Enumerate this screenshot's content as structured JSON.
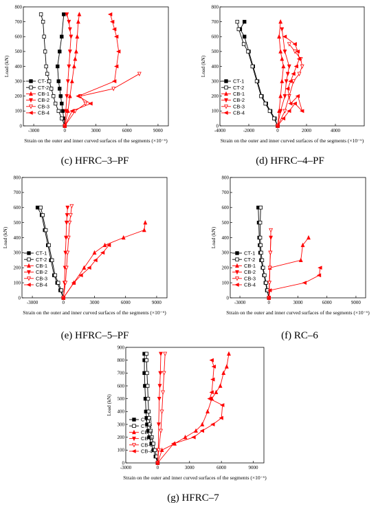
{
  "chart_data": [
    {
      "type": "line",
      "caption": "(c) HFRC–3–PF",
      "xlabel": "Strain on the outer and inner curved surfaces of the segments (×10⁻⁶)",
      "ylabel": "Load (kN)",
      "xlim": [
        -4000,
        10000
      ],
      "ylim": [
        0,
        800
      ],
      "xticks": [
        "-3000",
        "0",
        "3000",
        "6000",
        "9000"
      ],
      "yticks": [
        "0",
        "100",
        "200",
        "300",
        "400",
        "500",
        "600",
        "700",
        "800"
      ],
      "legend": "left",
      "series": [
        {
          "name": "CT-1",
          "color": "#000000",
          "marker": "square-filled",
          "x": [
            0,
            -100,
            -200,
            -300,
            -400,
            -500,
            -600,
            -700,
            -500,
            -300,
            -100
          ],
          "y": [
            0,
            50,
            100,
            150,
            200,
            250,
            300,
            400,
            500,
            600,
            750
          ]
        },
        {
          "name": "CT-2",
          "color": "#000000",
          "marker": "square-open",
          "x": [
            0,
            -300,
            -600,
            -900,
            -1100,
            -1300,
            -1500,
            -1700,
            -1800,
            -1900,
            -2000,
            -2100,
            -2300
          ],
          "y": [
            0,
            50,
            100,
            150,
            200,
            250,
            300,
            350,
            400,
            500,
            600,
            700,
            750
          ]
        },
        {
          "name": "CB-1",
          "color": "#ff0000",
          "marker": "triangle-up",
          "x": [
            0,
            300,
            500,
            700,
            900,
            1000,
            1100,
            1200,
            1300,
            1400
          ],
          "y": [
            0,
            100,
            200,
            300,
            400,
            450,
            500,
            600,
            700,
            750
          ]
        },
        {
          "name": "CB-2",
          "color": "#ff0000",
          "marker": "triangle-down",
          "x": [
            0,
            100,
            200,
            300,
            400,
            500,
            600,
            500,
            400,
            200
          ],
          "y": [
            0,
            100,
            200,
            300,
            400,
            500,
            600,
            650,
            700,
            750
          ]
        },
        {
          "name": "CB-3",
          "color": "#ff0000",
          "marker": "triangle-down-open",
          "x": [
            0,
            1000,
            2000,
            1500,
            4700,
            7200
          ],
          "y": [
            0,
            100,
            150,
            200,
            250,
            350
          ]
        },
        {
          "name": "CB-4",
          "color": "#ff0000",
          "marker": "triangle-left",
          "x": [
            0,
            700,
            2500,
            1300,
            4800,
            5000,
            5200,
            5000,
            4800,
            4600,
            4400
          ],
          "y": [
            0,
            100,
            150,
            200,
            300,
            400,
            500,
            600,
            650,
            700,
            750
          ]
        }
      ]
    },
    {
      "type": "line",
      "caption": "(d) HFRC–4–PF",
      "xlabel": "Strain on the outer and inner curved surfaces of the segments (×10⁻⁶)",
      "ylabel": "Load (kN)",
      "xlim": [
        -4000,
        6000
      ],
      "ylim": [
        0,
        800
      ],
      "xticks": [
        "-4000",
        "-2000",
        "0",
        "2000",
        "4000"
      ],
      "yticks": [
        "0",
        "100",
        "200",
        "300",
        "400",
        "500",
        "600",
        "700",
        "800"
      ],
      "legend": "left",
      "series": [
        {
          "name": "CT-1",
          "color": "#000000",
          "marker": "square-filled",
          "x": [
            0,
            -200,
            -500,
            -800,
            -1100,
            -1400,
            -1700,
            -2000,
            -2300,
            -2600,
            -2300
          ],
          "y": [
            0,
            50,
            100,
            150,
            200,
            300,
            400,
            500,
            600,
            650,
            700
          ]
        },
        {
          "name": "CT-2",
          "color": "#000000",
          "marker": "square-open",
          "x": [
            0,
            -250,
            -550,
            -850,
            -1150,
            -1450,
            -1750,
            -2050,
            -2350,
            -2700,
            -2800
          ],
          "y": [
            0,
            50,
            100,
            150,
            200,
            300,
            400,
            500,
            550,
            650,
            700
          ]
        },
        {
          "name": "CB-1",
          "color": "#ff0000",
          "marker": "triangle-up",
          "x": [
            0,
            100,
            200,
            300,
            400,
            300,
            200,
            100,
            200
          ],
          "y": [
            0,
            100,
            200,
            300,
            400,
            450,
            500,
            600,
            700
          ]
        },
        {
          "name": "CB-2",
          "color": "#ff0000",
          "marker": "triangle-down",
          "x": [
            0,
            200,
            500,
            600,
            700,
            800,
            500,
            300
          ],
          "y": [
            0,
            100,
            200,
            300,
            350,
            400,
            500,
            650
          ]
        },
        {
          "name": "CB-3",
          "color": "#ff0000",
          "marker": "triangle-down-open",
          "x": [
            0,
            500,
            800,
            1100,
            1500,
            1700,
            1600,
            1200,
            800
          ],
          "y": [
            0,
            100,
            200,
            300,
            350,
            400,
            450,
            500,
            550
          ]
        },
        {
          "name": "CB-4",
          "color": "#ff0000",
          "marker": "triangle-left",
          "x": [
            0,
            400,
            800,
            1200,
            1700,
            1400,
            900,
            700,
            900,
            1100,
            1300,
            1500,
            1400,
            1200,
            500
          ],
          "y": [
            0,
            50,
            100,
            150,
            100,
            200,
            150,
            250,
            300,
            350,
            400,
            450,
            500,
            550,
            600
          ]
        }
      ]
    },
    {
      "type": "line",
      "caption": "(e) HFRC–5–PF",
      "xlabel": "Strain on the outer and inner curved surfaces of the segments (×10⁻⁶)",
      "ylabel": "Load (kN)",
      "xlim": [
        -4000,
        10000
      ],
      "ylim": [
        0,
        800
      ],
      "xticks": [
        "-3000",
        "0",
        "3000",
        "6000",
        "9000"
      ],
      "yticks": [
        "0",
        "100",
        "200",
        "300",
        "400",
        "500",
        "600",
        "700",
        "800"
      ],
      "legend": "left",
      "series": [
        {
          "name": "CT-1",
          "color": "#000000",
          "marker": "square-filled",
          "x": [
            0,
            -300,
            -600,
            -900,
            -1200,
            -1500,
            -1800,
            -2100,
            -2500
          ],
          "y": [
            0,
            50,
            100,
            150,
            250,
            350,
            450,
            550,
            600
          ]
        },
        {
          "name": "CT-2",
          "color": "#000000",
          "marker": "square-open",
          "x": [
            0,
            -200,
            -500,
            -800,
            -1100,
            -1400,
            -1700,
            -2000,
            -2200
          ],
          "y": [
            0,
            50,
            100,
            150,
            250,
            350,
            450,
            550,
            600
          ]
        },
        {
          "name": "CB-1",
          "color": "#ff0000",
          "marker": "triangle-up",
          "x": [
            0,
            1000,
            2000,
            3000,
            4000,
            5800,
            7800,
            7900
          ],
          "y": [
            0,
            100,
            200,
            300,
            350,
            400,
            450,
            500
          ]
        },
        {
          "name": "CB-2",
          "color": "#ff0000",
          "marker": "triangle-down",
          "x": [
            0,
            100,
            150,
            200,
            250,
            300,
            350,
            400
          ],
          "y": [
            0,
            100,
            200,
            300,
            400,
            500,
            550,
            600
          ]
        },
        {
          "name": "CB-3",
          "color": "#ff0000",
          "marker": "triangle-down-open",
          "x": [
            0,
            200,
            300,
            400,
            500,
            600,
            700,
            800
          ],
          "y": [
            0,
            100,
            200,
            300,
            400,
            500,
            550,
            610
          ]
        },
        {
          "name": "CB-4",
          "color": "#ff0000",
          "marker": "triangle-left",
          "x": [
            0,
            1000,
            1700,
            2500,
            3100,
            3800,
            4400
          ],
          "y": [
            0,
            100,
            150,
            200,
            250,
            300,
            350
          ]
        }
      ]
    },
    {
      "type": "line",
      "caption": "(f) RC–6",
      "xlabel": "Strain on the outer and inner curved surfaces of the segments (×10⁻⁶)",
      "ylabel": "Load (kN)",
      "xlim": [
        -4000,
        10000
      ],
      "ylim": [
        0,
        800
      ],
      "xticks": [
        "-3000",
        "0",
        "3000",
        "6000",
        "9000"
      ],
      "yticks": [
        "0",
        "100",
        "200",
        "300",
        "400",
        "500",
        "600",
        "700",
        "800"
      ],
      "legend": "left",
      "series": [
        {
          "name": "CT-1",
          "color": "#000000",
          "marker": "square-filled",
          "x": [
            0,
            -200,
            -350,
            -500,
            -650,
            -800,
            -900,
            -950,
            -1000,
            -1050,
            -1100
          ],
          "y": [
            0,
            50,
            100,
            150,
            200,
            250,
            300,
            350,
            400,
            500,
            600
          ]
        },
        {
          "name": "CT-2",
          "color": "#000000",
          "marker": "square-open",
          "x": [
            0,
            -150,
            -300,
            -450,
            -600,
            -700,
            -800,
            -850,
            -900,
            -900,
            -850
          ],
          "y": [
            0,
            50,
            100,
            150,
            200,
            250,
            300,
            350,
            400,
            500,
            600
          ]
        },
        {
          "name": "CB-1",
          "color": "#ff0000",
          "marker": "triangle-up",
          "x": [
            0,
            100,
            3300,
            3500,
            4100
          ],
          "y": [
            0,
            200,
            250,
            350,
            400
          ]
        },
        {
          "name": "CB-2",
          "color": "#ff0000",
          "marker": "triangle-down",
          "x": [
            0,
            50,
            100,
            150,
            200
          ],
          "y": [
            0,
            100,
            200,
            300,
            400
          ]
        },
        {
          "name": "CB-3",
          "color": "#ff0000",
          "marker": "triangle-down-open",
          "x": [
            0,
            50,
            100,
            150,
            200
          ],
          "y": [
            0,
            100,
            200,
            300,
            450
          ]
        },
        {
          "name": "CB-4",
          "color": "#ff0000",
          "marker": "triangle-left",
          "x": [
            0,
            100,
            3700,
            5200,
            5300
          ],
          "y": [
            0,
            50,
            100,
            150,
            200
          ]
        }
      ]
    },
    {
      "type": "line",
      "caption": "(g) HFRC–7",
      "xlabel": "Strain on the outer and inner curved surfaces of the segments (×10⁻⁶)",
      "ylabel": "Load (kN)",
      "xlim": [
        -3000,
        10000
      ],
      "ylim": [
        0,
        900
      ],
      "xticks": [
        "-3000",
        "0",
        "3000",
        "6000",
        "9000"
      ],
      "yticks": [
        "0",
        "100",
        "200",
        "300",
        "400",
        "500",
        "600",
        "700",
        "800",
        "900"
      ],
      "legend": "left",
      "series": [
        {
          "name": "CT-1",
          "color": "#000000",
          "marker": "square-filled",
          "x": [
            0,
            -200,
            -400,
            -600,
            -800,
            -900,
            -1000,
            -1050,
            -1100,
            -1150,
            -1200,
            -1250,
            -1250,
            -1250
          ],
          "y": [
            0,
            50,
            100,
            150,
            200,
            250,
            300,
            350,
            400,
            500,
            600,
            700,
            800,
            850
          ]
        },
        {
          "name": "CT-2",
          "color": "#000000",
          "marker": "square-open",
          "x": [
            0,
            -100,
            -250,
            -400,
            -550,
            -650,
            -750,
            -800,
            -850,
            -900,
            -950,
            -1000,
            -1050,
            -1050
          ],
          "y": [
            0,
            50,
            100,
            150,
            200,
            250,
            300,
            350,
            400,
            500,
            600,
            700,
            800,
            850
          ]
        },
        {
          "name": "CB-1",
          "color": "#ff0000",
          "marker": "triangle-up",
          "x": [
            0,
            400,
            1600,
            2600,
            3600,
            4200,
            4700,
            5100,
            5500,
            5900,
            6200,
            6500,
            6700
          ],
          "y": [
            0,
            100,
            150,
            200,
            250,
            300,
            400,
            500,
            550,
            600,
            700,
            750,
            850
          ]
        },
        {
          "name": "CB-2",
          "color": "#ff0000",
          "marker": "triangle-down",
          "x": [
            0,
            50,
            100,
            150,
            200,
            250,
            300
          ],
          "y": [
            0,
            100,
            300,
            500,
            600,
            700,
            850
          ]
        },
        {
          "name": "CB-3",
          "color": "#ff0000",
          "marker": "triangle-down-open",
          "x": [
            0,
            100,
            300,
            400,
            500,
            600,
            700
          ],
          "y": [
            0,
            100,
            250,
            400,
            550,
            700,
            850
          ]
        },
        {
          "name": "CB-4",
          "color": "#ff0000",
          "marker": "triangle-left",
          "x": [
            0,
            1500,
            3400,
            4200,
            5200,
            6000,
            6100,
            4900,
            5100,
            5200,
            5300,
            5100
          ],
          "y": [
            0,
            150,
            200,
            250,
            300,
            350,
            450,
            500,
            550,
            650,
            750,
            800
          ]
        }
      ]
    }
  ]
}
